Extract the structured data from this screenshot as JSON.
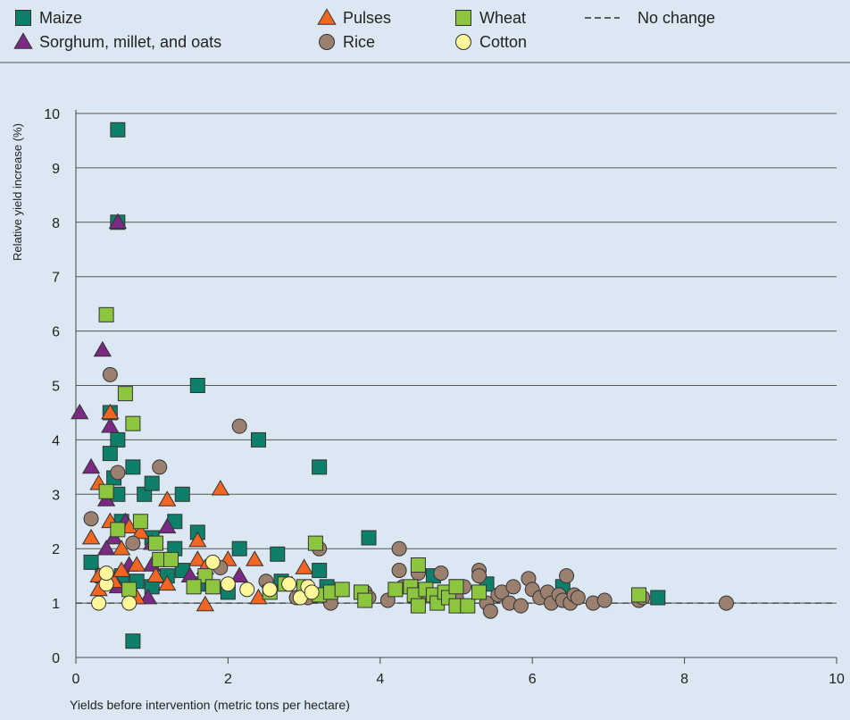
{
  "colors": {
    "background": "#dbe8f3",
    "maize": "#0e7f6a",
    "sorghum": "#7a2a82",
    "pulses": "#f26522",
    "rice": "#9b8070",
    "wheat": "#8cc63f",
    "cotton": "#fff79a",
    "grid": "#555555",
    "stroke": "#333333"
  },
  "legend": [
    {
      "key": "maize",
      "label": "Maize",
      "marker": "square-icon"
    },
    {
      "key": "sorghum",
      "label": "Sorghum, millet, and oats",
      "marker": "triangle-icon"
    },
    {
      "key": "pulses",
      "label": "Pulses",
      "marker": "triangle-icon"
    },
    {
      "key": "rice",
      "label": "Rice",
      "marker": "circle-icon"
    },
    {
      "key": "wheat",
      "label": "Wheat",
      "marker": "square-icon"
    },
    {
      "key": "cotton",
      "label": "Cotton",
      "marker": "circle-icon"
    },
    {
      "key": "nochange",
      "label": "No change",
      "marker": "dashed-line-icon"
    }
  ],
  "chart_data": {
    "type": "scatter",
    "title": "",
    "xlabel": "Yields before intervention (metric tons per hectare)",
    "ylabel": "Relative yield increase (%)",
    "xlim": [
      0,
      10
    ],
    "ylim": [
      0,
      10
    ],
    "x_ticks": [
      0,
      2,
      4,
      6,
      8,
      10
    ],
    "y_ticks": [
      0,
      1,
      2,
      3,
      4,
      5,
      6,
      7,
      8,
      9,
      10
    ],
    "grid": "horizontal",
    "reference_line": {
      "y": 1,
      "label": "No change",
      "style": "dashed"
    },
    "series": [
      {
        "name": "Maize",
        "key": "maize",
        "marker": "square",
        "points": [
          [
            0.55,
            9.7
          ],
          [
            0.55,
            8.0
          ],
          [
            0.45,
            4.5
          ],
          [
            0.55,
            4.0
          ],
          [
            0.45,
            3.75
          ],
          [
            0.75,
            3.5
          ],
          [
            0.5,
            3.3
          ],
          [
            0.55,
            3.0
          ],
          [
            0.9,
            3.0
          ],
          [
            1.0,
            3.2
          ],
          [
            1.4,
            3.0
          ],
          [
            1.6,
            5.0
          ],
          [
            2.4,
            4.0
          ],
          [
            3.2,
            3.5
          ],
          [
            3.85,
            2.2
          ],
          [
            1.6,
            2.3
          ],
          [
            1.3,
            2.5
          ],
          [
            2.15,
            2.0
          ],
          [
            1.3,
            2.0
          ],
          [
            0.2,
            1.75
          ],
          [
            0.35,
            1.5
          ],
          [
            0.6,
            1.5
          ],
          [
            0.8,
            1.4
          ],
          [
            1.0,
            1.3
          ],
          [
            1.2,
            1.5
          ],
          [
            1.4,
            1.6
          ],
          [
            1.6,
            1.35
          ],
          [
            2.0,
            1.2
          ],
          [
            2.65,
            1.9
          ],
          [
            2.7,
            1.4
          ],
          [
            3.2,
            1.6
          ],
          [
            3.3,
            1.3
          ],
          [
            0.75,
            0.3
          ],
          [
            4.7,
            1.5
          ],
          [
            5.0,
            1.3
          ],
          [
            5.4,
            1.35
          ],
          [
            6.4,
            1.3
          ],
          [
            7.65,
            1.1
          ],
          [
            0.6,
            2.5
          ],
          [
            1.0,
            2.2
          ]
        ]
      },
      {
        "name": "Sorghum, millet, and oats",
        "key": "sorghum",
        "marker": "triangle",
        "points": [
          [
            0.55,
            8.0
          ],
          [
            0.35,
            5.65
          ],
          [
            0.05,
            4.5
          ],
          [
            0.45,
            4.25
          ],
          [
            0.2,
            3.5
          ],
          [
            0.4,
            2.9
          ],
          [
            0.5,
            2.2
          ],
          [
            0.55,
            1.3
          ],
          [
            1.0,
            2.1
          ],
          [
            1.2,
            2.4
          ],
          [
            0.95,
            1.1
          ],
          [
            1.5,
            1.5
          ],
          [
            2.15,
            1.5
          ],
          [
            1.0,
            1.7
          ],
          [
            0.7,
            1.7
          ],
          [
            0.4,
            2.0
          ],
          [
            0.65,
            2.5
          ]
        ]
      },
      {
        "name": "Pulses",
        "key": "pulses",
        "marker": "triangle",
        "points": [
          [
            0.45,
            4.5
          ],
          [
            0.3,
            3.2
          ],
          [
            0.45,
            2.5
          ],
          [
            0.2,
            2.2
          ],
          [
            0.3,
            1.5
          ],
          [
            0.5,
            1.4
          ],
          [
            0.7,
            2.4
          ],
          [
            0.85,
            2.3
          ],
          [
            0.6,
            1.6
          ],
          [
            0.8,
            1.7
          ],
          [
            0.3,
            1.25
          ],
          [
            0.6,
            2.0
          ],
          [
            1.05,
            1.5
          ],
          [
            1.2,
            1.35
          ],
          [
            1.2,
            2.9
          ],
          [
            1.6,
            2.15
          ],
          [
            1.6,
            1.8
          ],
          [
            1.9,
            3.1
          ],
          [
            2.0,
            1.8
          ],
          [
            1.7,
            1.65
          ],
          [
            2.35,
            1.8
          ],
          [
            2.4,
            1.1
          ],
          [
            3.0,
            1.65
          ],
          [
            1.7,
            0.97
          ],
          [
            0.8,
            1.1
          ]
        ]
      },
      {
        "name": "Rice",
        "key": "rice",
        "marker": "circle",
        "points": [
          [
            0.45,
            5.2
          ],
          [
            0.55,
            3.4
          ],
          [
            1.1,
            3.5
          ],
          [
            0.2,
            2.55
          ],
          [
            0.75,
            2.1
          ],
          [
            2.15,
            4.25
          ],
          [
            1.9,
            1.65
          ],
          [
            2.5,
            1.4
          ],
          [
            3.2,
            2.0
          ],
          [
            4.25,
            2.0
          ],
          [
            4.25,
            1.6
          ],
          [
            4.5,
            1.55
          ],
          [
            4.8,
            1.55
          ],
          [
            4.3,
            1.3
          ],
          [
            4.6,
            1.2
          ],
          [
            5.0,
            1.1
          ],
          [
            5.1,
            1.3
          ],
          [
            5.3,
            1.6
          ],
          [
            5.3,
            1.5
          ],
          [
            5.4,
            1.0
          ],
          [
            5.45,
            0.85
          ],
          [
            5.55,
            1.15
          ],
          [
            5.6,
            1.2
          ],
          [
            5.7,
            1.0
          ],
          [
            5.75,
            1.3
          ],
          [
            5.85,
            0.95
          ],
          [
            5.95,
            1.45
          ],
          [
            6.0,
            1.25
          ],
          [
            6.1,
            1.1
          ],
          [
            6.2,
            1.2
          ],
          [
            6.25,
            1.0
          ],
          [
            6.35,
            1.15
          ],
          [
            6.4,
            1.05
          ],
          [
            6.45,
            1.5
          ],
          [
            6.5,
            1.0
          ],
          [
            6.55,
            1.15
          ],
          [
            6.6,
            1.1
          ],
          [
            6.8,
            1.0
          ],
          [
            6.95,
            1.05
          ],
          [
            7.4,
            1.05
          ],
          [
            7.45,
            1.1
          ],
          [
            8.55,
            1.0
          ],
          [
            3.35,
            1.0
          ],
          [
            3.8,
            1.2
          ],
          [
            3.85,
            1.1
          ],
          [
            2.9,
            1.1
          ],
          [
            3.05,
            1.1
          ],
          [
            4.1,
            1.05
          ]
        ]
      },
      {
        "name": "Wheat",
        "key": "wheat",
        "marker": "square",
        "points": [
          [
            0.4,
            6.3
          ],
          [
            0.65,
            4.85
          ],
          [
            0.75,
            4.3
          ],
          [
            0.4,
            3.05
          ],
          [
            0.85,
            2.5
          ],
          [
            0.55,
            2.35
          ],
          [
            1.05,
            2.1
          ],
          [
            1.1,
            1.8
          ],
          [
            1.25,
            1.8
          ],
          [
            1.7,
            1.5
          ],
          [
            1.55,
            1.3
          ],
          [
            1.8,
            1.3
          ],
          [
            0.7,
            1.25
          ],
          [
            2.55,
            1.2
          ],
          [
            2.75,
            1.35
          ],
          [
            3.0,
            1.3
          ],
          [
            3.15,
            2.1
          ],
          [
            3.2,
            1.15
          ],
          [
            3.35,
            1.2
          ],
          [
            3.5,
            1.25
          ],
          [
            3.75,
            1.2
          ],
          [
            3.8,
            1.05
          ],
          [
            4.2,
            1.25
          ],
          [
            4.4,
            1.3
          ],
          [
            4.45,
            1.15
          ],
          [
            4.5,
            1.7
          ],
          [
            4.5,
            0.95
          ],
          [
            4.6,
            1.25
          ],
          [
            4.7,
            1.15
          ],
          [
            4.75,
            1.0
          ],
          [
            4.85,
            1.2
          ],
          [
            4.9,
            1.1
          ],
          [
            5.0,
            1.3
          ],
          [
            5.0,
            0.95
          ],
          [
            5.15,
            0.95
          ],
          [
            5.3,
            1.2
          ],
          [
            7.4,
            1.15
          ]
        ]
      },
      {
        "name": "Cotton",
        "key": "cotton",
        "marker": "circle",
        "points": [
          [
            0.3,
            1.0
          ],
          [
            0.4,
            1.35
          ],
          [
            0.4,
            1.55
          ],
          [
            0.7,
            1.0
          ],
          [
            1.8,
            1.75
          ],
          [
            2.0,
            1.35
          ],
          [
            2.25,
            1.25
          ],
          [
            2.55,
            1.25
          ],
          [
            2.8,
            1.35
          ],
          [
            2.95,
            1.1
          ],
          [
            3.05,
            1.3
          ],
          [
            3.1,
            1.2
          ]
        ]
      }
    ]
  }
}
